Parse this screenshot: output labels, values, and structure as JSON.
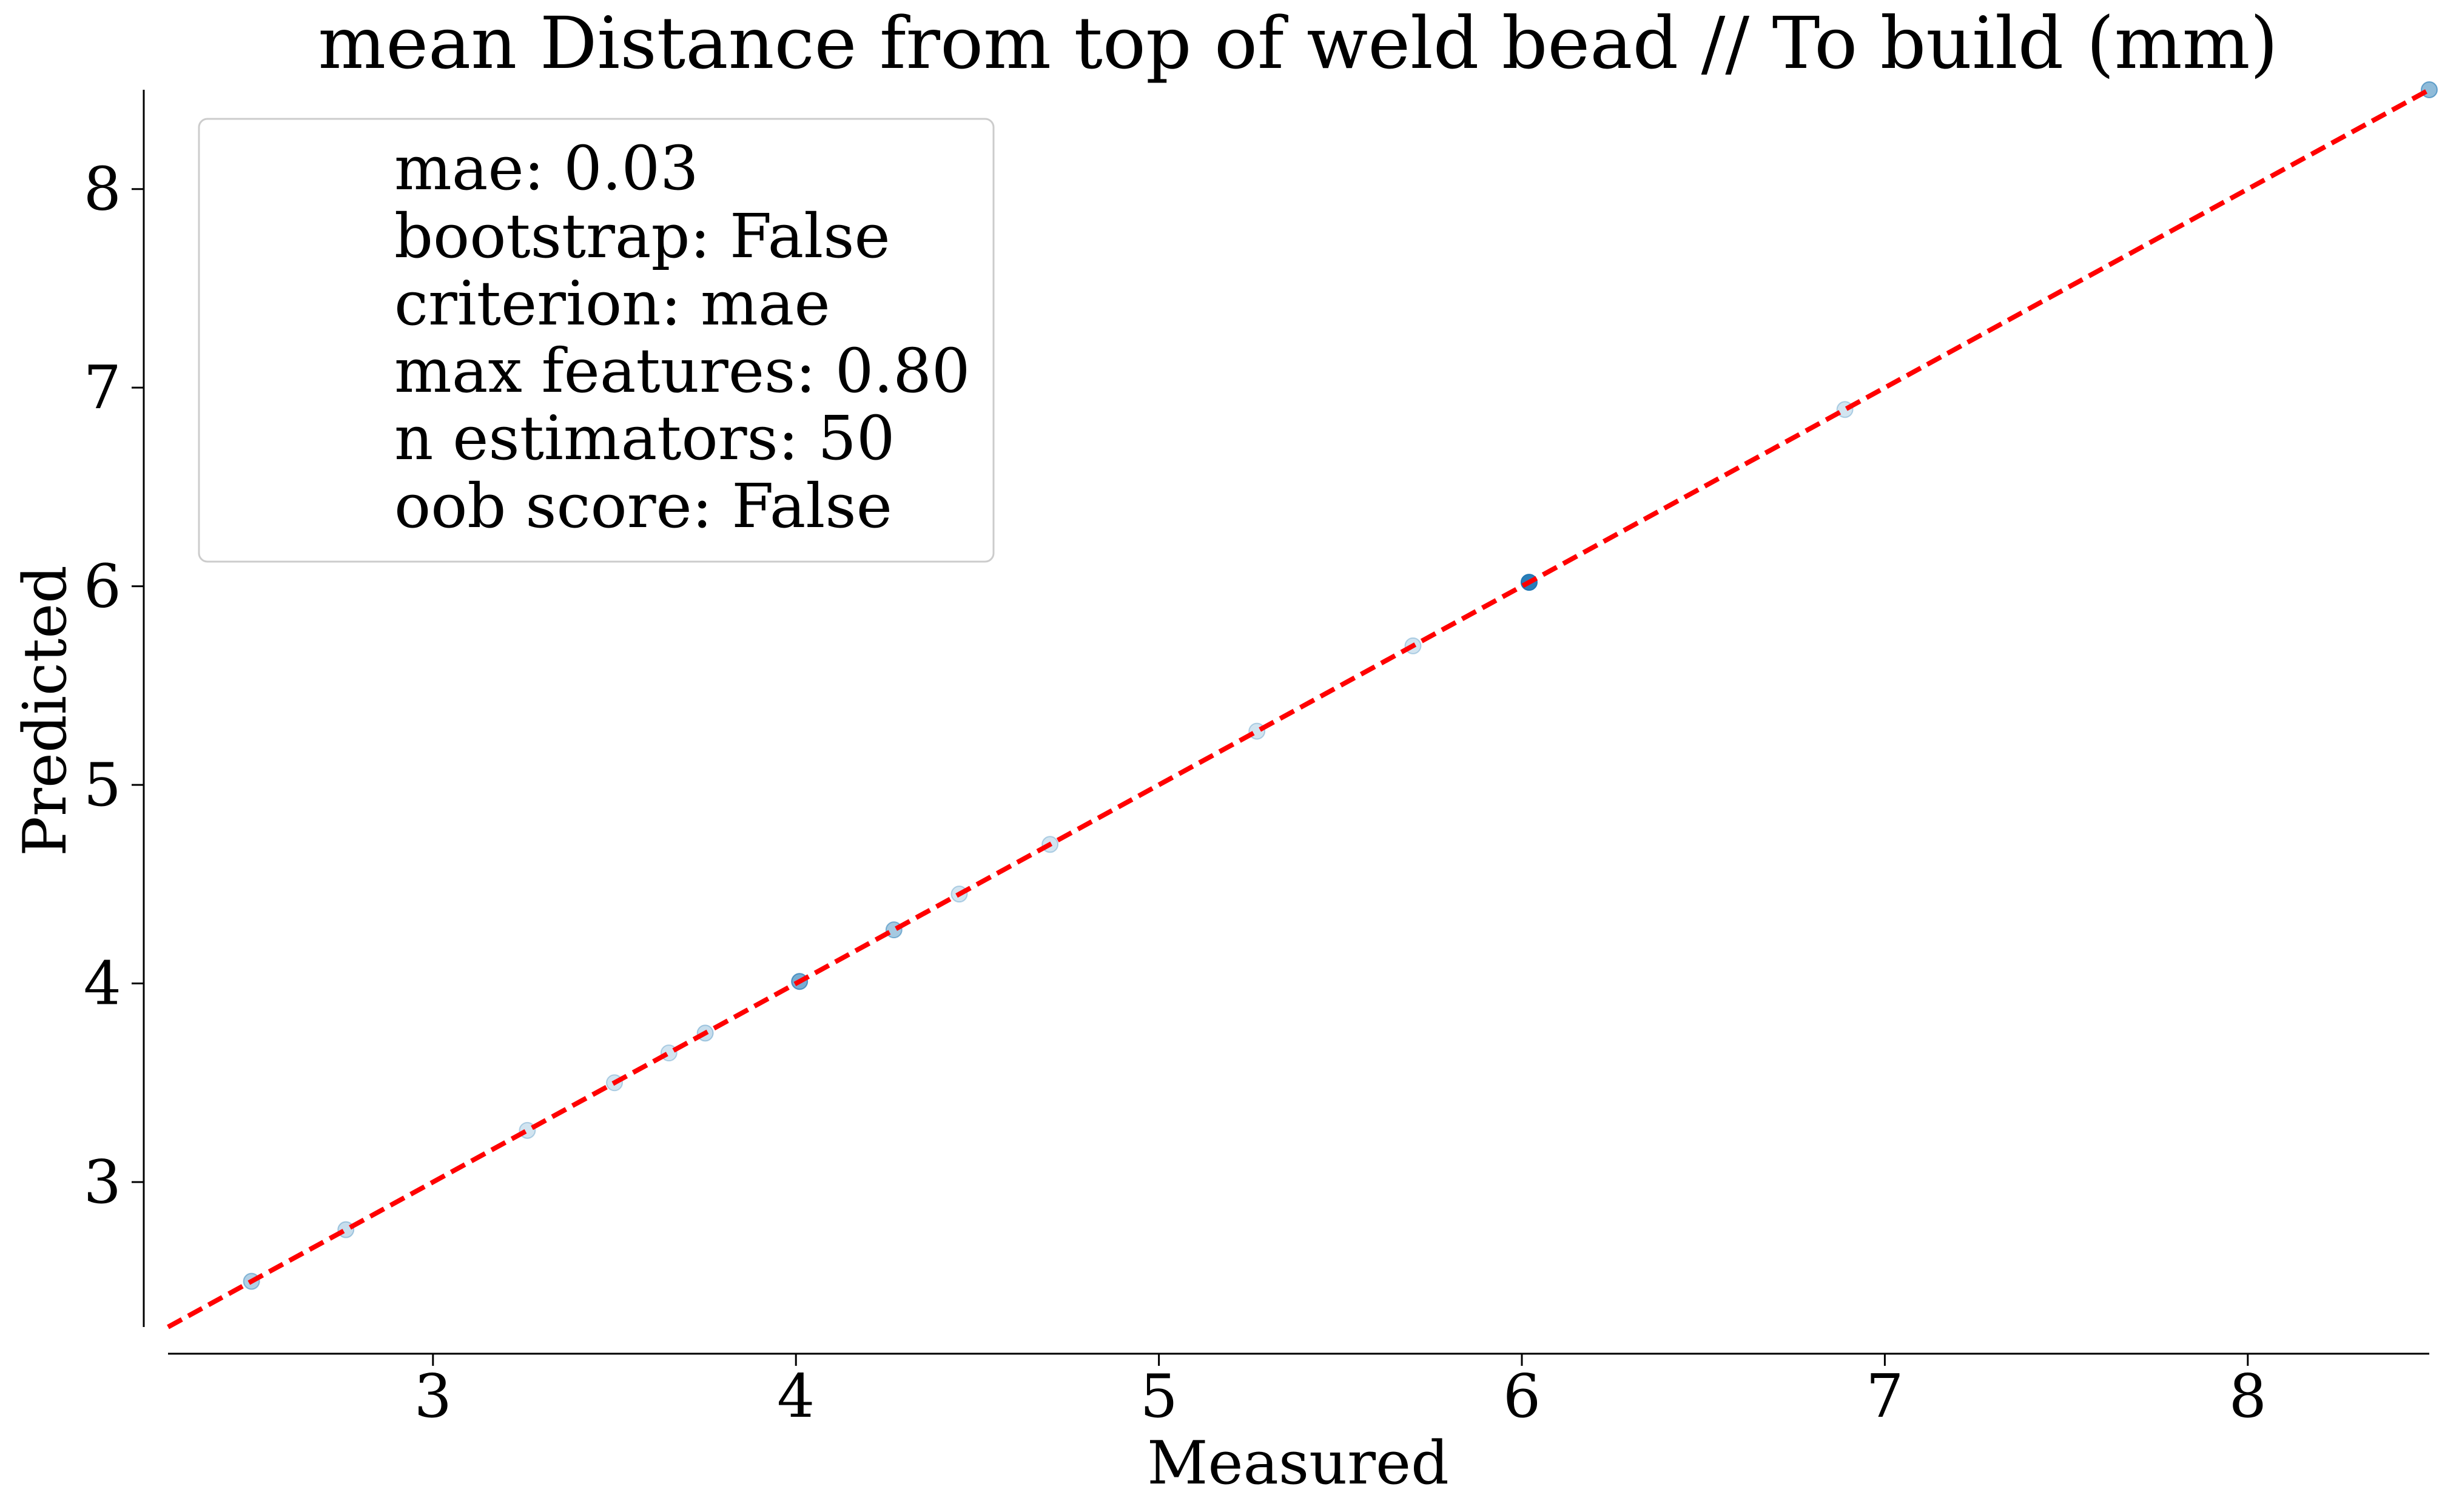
{
  "chart_data": {
    "type": "scatter",
    "title": "mean Distance from top of weld bead // To build (mm)",
    "xlabel": "Measured",
    "ylabel": "Predicted",
    "xlim": [
      2.27,
      8.5
    ],
    "ylim": [
      2.27,
      8.5
    ],
    "xticks": [
      3,
      4,
      5,
      6,
      7,
      8
    ],
    "yticks": [
      3,
      4,
      5,
      6,
      7,
      8
    ],
    "grid": false,
    "legend_placement": "top-left",
    "legend_lines": [
      "mae: 0.03",
      "bootstrap: False",
      "criterion: mae",
      "max features: 0.80",
      "n estimators: 50",
      "oob score: False"
    ],
    "reference_line": {
      "style": "dashed",
      "color": "#ff0000",
      "x": [
        2.27,
        8.5
      ],
      "y": [
        2.27,
        8.5
      ]
    },
    "marker_color": "#1f77b4",
    "points": [
      {
        "x": 2.5,
        "y": 2.5,
        "alpha": 0.35
      },
      {
        "x": 2.76,
        "y": 2.76,
        "alpha": 0.25
      },
      {
        "x": 3.26,
        "y": 3.26,
        "alpha": 0.2
      },
      {
        "x": 3.5,
        "y": 3.5,
        "alpha": 0.2
      },
      {
        "x": 3.65,
        "y": 3.65,
        "alpha": 0.2
      },
      {
        "x": 3.75,
        "y": 3.75,
        "alpha": 0.25
      },
      {
        "x": 4.01,
        "y": 4.01,
        "alpha": 0.6
      },
      {
        "x": 4.27,
        "y": 4.27,
        "alpha": 0.4
      },
      {
        "x": 4.45,
        "y": 4.45,
        "alpha": 0.2
      },
      {
        "x": 4.7,
        "y": 4.7,
        "alpha": 0.2
      },
      {
        "x": 5.27,
        "y": 5.27,
        "alpha": 0.2
      },
      {
        "x": 5.7,
        "y": 5.7,
        "alpha": 0.2
      },
      {
        "x": 6.02,
        "y": 6.02,
        "alpha": 0.95
      },
      {
        "x": 6.89,
        "y": 6.89,
        "alpha": 0.2
      },
      {
        "x": 8.5,
        "y": 8.5,
        "alpha": 0.5
      }
    ]
  }
}
